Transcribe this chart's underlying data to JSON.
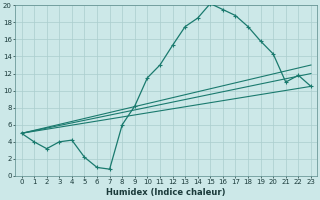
{
  "xlabel": "Humidex (Indice chaleur)",
  "ylabel": "",
  "xlim": [
    -0.5,
    23.5
  ],
  "ylim": [
    0,
    20
  ],
  "line_color": "#1a7a6e",
  "bg_color": "#cce8e8",
  "grid_color": "#aacece",
  "line1_x": [
    0,
    1,
    2,
    3,
    4,
    5,
    6,
    7,
    8,
    9,
    10,
    11,
    12,
    13,
    14,
    15,
    16,
    17,
    18,
    19,
    20,
    21,
    22,
    23
  ],
  "line1_y": [
    5.0,
    4.0,
    3.2,
    4.0,
    4.2,
    2.2,
    1.0,
    0.8,
    6.0,
    8.2,
    11.5,
    13.0,
    15.3,
    17.5,
    18.5,
    20.2,
    19.5,
    18.8,
    17.5,
    15.8,
    14.3,
    11.0,
    11.8,
    10.5
  ],
  "line2_x": [
    0,
    23
  ],
  "line2_y": [
    5.0,
    13.0
  ],
  "line3_x": [
    0,
    23
  ],
  "line3_y": [
    5.0,
    10.5
  ],
  "line4_x": [
    0,
    23
  ],
  "line4_y": [
    5.0,
    12.0
  ],
  "xtick_step": 1,
  "ytick_step": 2,
  "xlabel_fontsize": 6,
  "tick_fontsize": 5
}
